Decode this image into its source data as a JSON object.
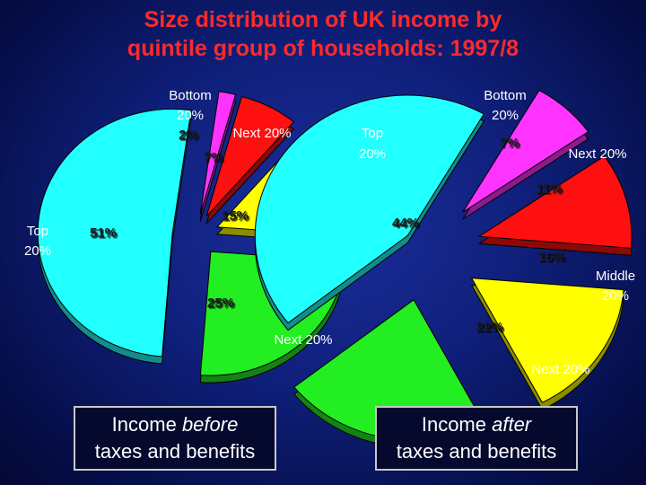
{
  "title": {
    "line1": "Size distribution of UK income by",
    "line2": "quintile group of households: 1997/8"
  },
  "colors": {
    "background": "#0f1f7a",
    "title": "#ff2a2a",
    "label": "#ffffff",
    "bottom": "#ff33ff",
    "next_low": "#ff1010",
    "middle": "#ffff00",
    "next_high": "#22ee22",
    "top": "#22ffff"
  },
  "chart_data": [
    {
      "type": "pie",
      "categories": [
        "Bottom 20%",
        "Next 20%",
        "Middle 20%",
        "Next 20%",
        "Top 20%"
      ],
      "values": [
        2,
        7,
        15,
        25,
        51
      ],
      "value_labels": [
        "2%",
        "7%",
        "15%",
        "25%",
        "51%"
      ],
      "colors": [
        "#ff33ff",
        "#ff1010",
        "#ffff00",
        "#22ee22",
        "#22ffff"
      ],
      "caption": {
        "line1_pre": "Income ",
        "line1_em": "before",
        "line2": "taxes and benefits"
      }
    },
    {
      "type": "pie",
      "categories": [
        "Bottom 20%",
        "Next 20%",
        "Middle 20%",
        "Next 20%",
        "Top 20%"
      ],
      "values": [
        7,
        11,
        16,
        22,
        44
      ],
      "value_labels": [
        "7%",
        "11%",
        "16%",
        "22%",
        "44%"
      ],
      "colors": [
        "#ff33ff",
        "#ff1010",
        "#ffff00",
        "#22ee22",
        "#22ffff"
      ],
      "caption": {
        "line1_pre": "Income ",
        "line1_em": "after",
        "line2": "taxes and benefits"
      }
    }
  ]
}
